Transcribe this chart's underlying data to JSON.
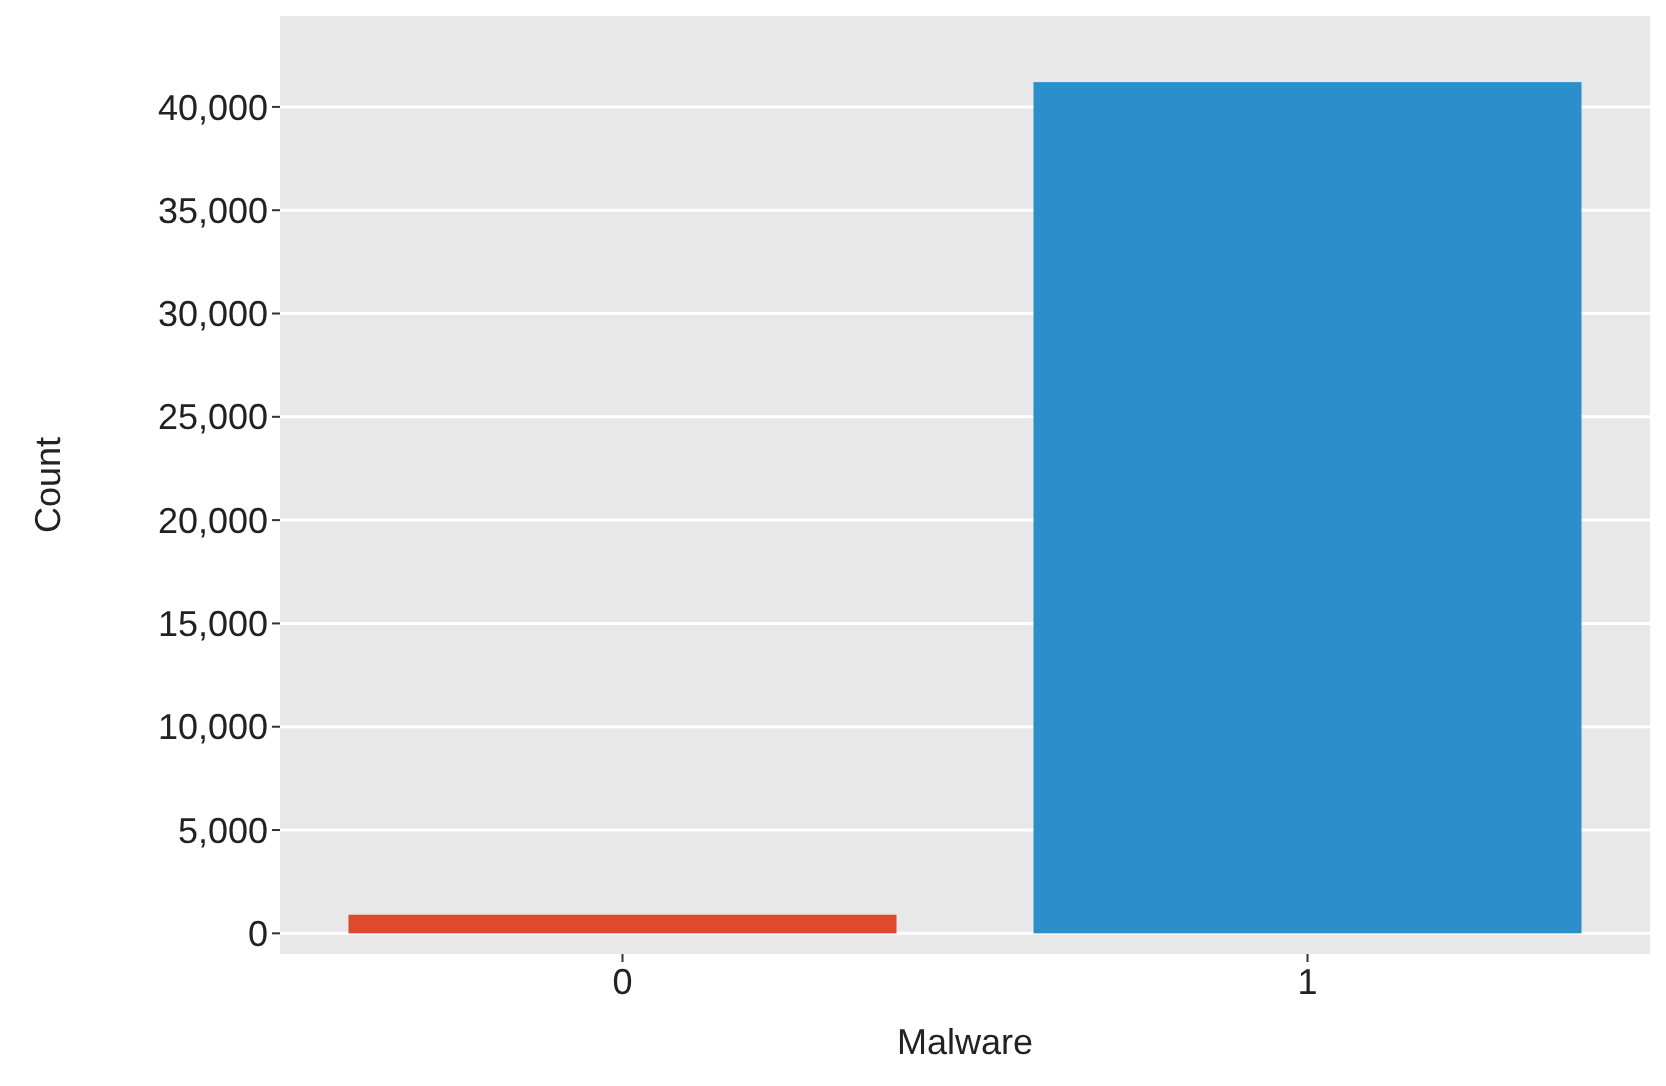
{
  "chart_data": {
    "type": "bar",
    "xlabel": "Malware",
    "ylabel": "Count",
    "categories": [
      "0",
      "1"
    ],
    "values": [
      900,
      41200
    ],
    "colors": [
      "#de4a2c",
      "#2b8fcc"
    ],
    "ylim": [
      -1000,
      44400
    ],
    "yticks": [
      {
        "value": 0,
        "label": "0"
      },
      {
        "value": 5000,
        "label": "5,000"
      },
      {
        "value": 10000,
        "label": "10,000"
      },
      {
        "value": 15000,
        "label": "15,000"
      },
      {
        "value": 20000,
        "label": "20,000"
      },
      {
        "value": 25000,
        "label": "25,000"
      },
      {
        "value": 30000,
        "label": "30,000"
      },
      {
        "value": 35000,
        "label": "35,000"
      },
      {
        "value": 40000,
        "label": "40,000"
      }
    ],
    "grid": "y"
  }
}
